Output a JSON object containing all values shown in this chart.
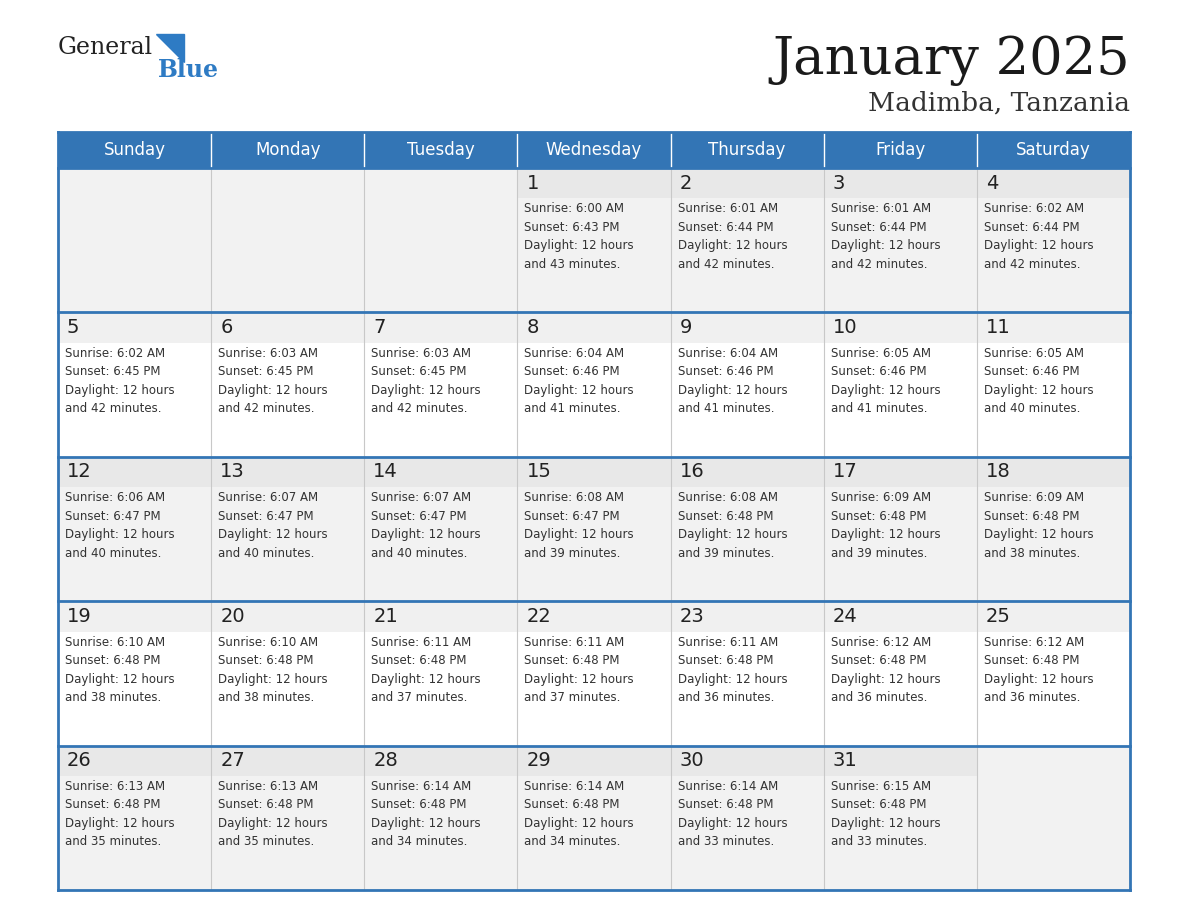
{
  "title": "January 2025",
  "subtitle": "Madimba, Tanzania",
  "header_bg_color": "#3375b5",
  "header_text_color": "#ffffff",
  "row_bg_odd": "#f2f2f2",
  "row_bg_even": "#ffffff",
  "day_number_color": "#222222",
  "cell_text_color": "#333333",
  "border_color": "#3375b5",
  "logo_text_color": "#222222",
  "logo_blue_color": "#2e7bc4",
  "days_of_week": [
    "Sunday",
    "Monday",
    "Tuesday",
    "Wednesday",
    "Thursday",
    "Friday",
    "Saturday"
  ],
  "calendar_data": [
    [
      {
        "day": null,
        "info": null
      },
      {
        "day": null,
        "info": null
      },
      {
        "day": null,
        "info": null
      },
      {
        "day": 1,
        "info": "Sunrise: 6:00 AM\nSunset: 6:43 PM\nDaylight: 12 hours\nand 43 minutes."
      },
      {
        "day": 2,
        "info": "Sunrise: 6:01 AM\nSunset: 6:44 PM\nDaylight: 12 hours\nand 42 minutes."
      },
      {
        "day": 3,
        "info": "Sunrise: 6:01 AM\nSunset: 6:44 PM\nDaylight: 12 hours\nand 42 minutes."
      },
      {
        "day": 4,
        "info": "Sunrise: 6:02 AM\nSunset: 6:44 PM\nDaylight: 12 hours\nand 42 minutes."
      }
    ],
    [
      {
        "day": 5,
        "info": "Sunrise: 6:02 AM\nSunset: 6:45 PM\nDaylight: 12 hours\nand 42 minutes."
      },
      {
        "day": 6,
        "info": "Sunrise: 6:03 AM\nSunset: 6:45 PM\nDaylight: 12 hours\nand 42 minutes."
      },
      {
        "day": 7,
        "info": "Sunrise: 6:03 AM\nSunset: 6:45 PM\nDaylight: 12 hours\nand 42 minutes."
      },
      {
        "day": 8,
        "info": "Sunrise: 6:04 AM\nSunset: 6:46 PM\nDaylight: 12 hours\nand 41 minutes."
      },
      {
        "day": 9,
        "info": "Sunrise: 6:04 AM\nSunset: 6:46 PM\nDaylight: 12 hours\nand 41 minutes."
      },
      {
        "day": 10,
        "info": "Sunrise: 6:05 AM\nSunset: 6:46 PM\nDaylight: 12 hours\nand 41 minutes."
      },
      {
        "day": 11,
        "info": "Sunrise: 6:05 AM\nSunset: 6:46 PM\nDaylight: 12 hours\nand 40 minutes."
      }
    ],
    [
      {
        "day": 12,
        "info": "Sunrise: 6:06 AM\nSunset: 6:47 PM\nDaylight: 12 hours\nand 40 minutes."
      },
      {
        "day": 13,
        "info": "Sunrise: 6:07 AM\nSunset: 6:47 PM\nDaylight: 12 hours\nand 40 minutes."
      },
      {
        "day": 14,
        "info": "Sunrise: 6:07 AM\nSunset: 6:47 PM\nDaylight: 12 hours\nand 40 minutes."
      },
      {
        "day": 15,
        "info": "Sunrise: 6:08 AM\nSunset: 6:47 PM\nDaylight: 12 hours\nand 39 minutes."
      },
      {
        "day": 16,
        "info": "Sunrise: 6:08 AM\nSunset: 6:48 PM\nDaylight: 12 hours\nand 39 minutes."
      },
      {
        "day": 17,
        "info": "Sunrise: 6:09 AM\nSunset: 6:48 PM\nDaylight: 12 hours\nand 39 minutes."
      },
      {
        "day": 18,
        "info": "Sunrise: 6:09 AM\nSunset: 6:48 PM\nDaylight: 12 hours\nand 38 minutes."
      }
    ],
    [
      {
        "day": 19,
        "info": "Sunrise: 6:10 AM\nSunset: 6:48 PM\nDaylight: 12 hours\nand 38 minutes."
      },
      {
        "day": 20,
        "info": "Sunrise: 6:10 AM\nSunset: 6:48 PM\nDaylight: 12 hours\nand 38 minutes."
      },
      {
        "day": 21,
        "info": "Sunrise: 6:11 AM\nSunset: 6:48 PM\nDaylight: 12 hours\nand 37 minutes."
      },
      {
        "day": 22,
        "info": "Sunrise: 6:11 AM\nSunset: 6:48 PM\nDaylight: 12 hours\nand 37 minutes."
      },
      {
        "day": 23,
        "info": "Sunrise: 6:11 AM\nSunset: 6:48 PM\nDaylight: 12 hours\nand 36 minutes."
      },
      {
        "day": 24,
        "info": "Sunrise: 6:12 AM\nSunset: 6:48 PM\nDaylight: 12 hours\nand 36 minutes."
      },
      {
        "day": 25,
        "info": "Sunrise: 6:12 AM\nSunset: 6:48 PM\nDaylight: 12 hours\nand 36 minutes."
      }
    ],
    [
      {
        "day": 26,
        "info": "Sunrise: 6:13 AM\nSunset: 6:48 PM\nDaylight: 12 hours\nand 35 minutes."
      },
      {
        "day": 27,
        "info": "Sunrise: 6:13 AM\nSunset: 6:48 PM\nDaylight: 12 hours\nand 35 minutes."
      },
      {
        "day": 28,
        "info": "Sunrise: 6:14 AM\nSunset: 6:48 PM\nDaylight: 12 hours\nand 34 minutes."
      },
      {
        "day": 29,
        "info": "Sunrise: 6:14 AM\nSunset: 6:48 PM\nDaylight: 12 hours\nand 34 minutes."
      },
      {
        "day": 30,
        "info": "Sunrise: 6:14 AM\nSunset: 6:48 PM\nDaylight: 12 hours\nand 33 minutes."
      },
      {
        "day": 31,
        "info": "Sunrise: 6:15 AM\nSunset: 6:48 PM\nDaylight: 12 hours\nand 33 minutes."
      },
      {
        "day": null,
        "info": null
      }
    ]
  ]
}
